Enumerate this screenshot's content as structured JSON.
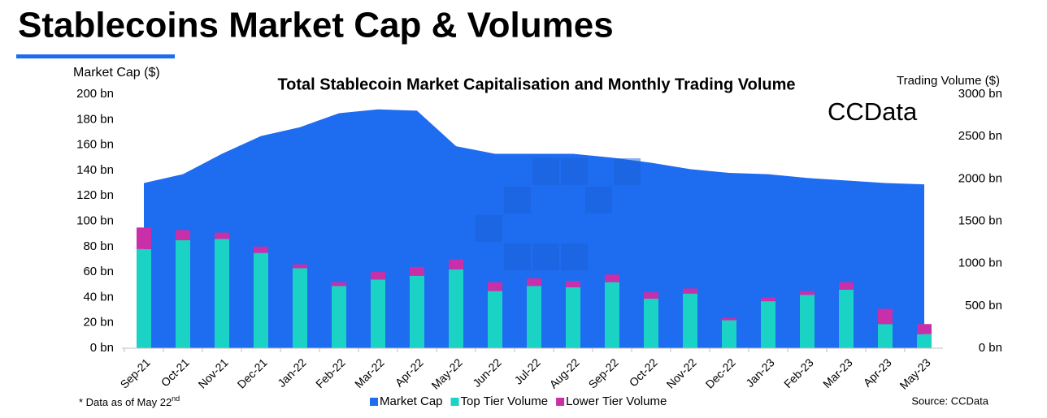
{
  "header": {
    "title": "Stablecoins Market Cap & Volumes"
  },
  "chart_data": {
    "type": "bar",
    "title": "Total Stablecoin Market Capitalisation and Monthly Trading Volume",
    "logo": "CCData",
    "y_label": "Market Cap ($)",
    "y2_label": "Trading Volume ($)",
    "categories": [
      "Sep-21",
      "Oct-21",
      "Nov-21",
      "Dec-21",
      "Jan-22",
      "Feb-22",
      "Mar-22",
      "Apr-22",
      "May-22",
      "Jun-22",
      "Jul-22",
      "Aug-22",
      "Sep-22",
      "Oct-22",
      "Nov-22",
      "Dec-22",
      "Jan-23",
      "Feb-23",
      "Mar-23",
      "Apr-23",
      "May-23"
    ],
    "series": [
      {
        "name": "Market Cap",
        "color": "#1e6cf0",
        "kind": "area",
        "axis": "y",
        "values": [
          130,
          137,
          153,
          167,
          174,
          185,
          188,
          187,
          159,
          153,
          153,
          153,
          150,
          146,
          141,
          138,
          137,
          134,
          132,
          130,
          129
        ]
      },
      {
        "name": "Top Tier Volume",
        "color": "#1ad3c4",
        "kind": "bar",
        "axis": "y2",
        "values": [
          1170,
          1275,
          1290,
          1125,
          945,
          735,
          810,
          855,
          930,
          675,
          735,
          720,
          780,
          585,
          645,
          330,
          555,
          630,
          690,
          285,
          165
        ]
      },
      {
        "name": "Lower Tier Volume",
        "color": "#c92fa9",
        "kind": "bar",
        "axis": "y2",
        "values": [
          255,
          120,
          75,
          75,
          45,
          45,
          90,
          105,
          120,
          105,
          90,
          75,
          90,
          75,
          60,
          30,
          45,
          45,
          90,
          180,
          120
        ]
      }
    ],
    "ylim": [
      0,
      200
    ],
    "yticks": [
      {
        "value": 0,
        "label": "0 bn"
      },
      {
        "value": 20,
        "label": "20 bn"
      },
      {
        "value": 40,
        "label": "40 bn"
      },
      {
        "value": 60,
        "label": "60 bn"
      },
      {
        "value": 80,
        "label": "80 bn"
      },
      {
        "value": 100,
        "label": "100 bn"
      },
      {
        "value": 120,
        "label": "120 bn"
      },
      {
        "value": 140,
        "label": "140 bn"
      },
      {
        "value": 160,
        "label": "160 bn"
      },
      {
        "value": 180,
        "label": "180 bn"
      },
      {
        "value": 200,
        "label": "200 bn"
      }
    ],
    "y2lim": [
      0,
      3000
    ],
    "y2ticks": [
      {
        "value": 0,
        "label": "0 bn"
      },
      {
        "value": 500,
        "label": "500 bn"
      },
      {
        "value": 1000,
        "label": "1000 bn"
      },
      {
        "value": 1500,
        "label": "1500 bn"
      },
      {
        "value": 2000,
        "label": "2000 bn"
      },
      {
        "value": 2500,
        "label": "2500 bn"
      },
      {
        "value": 3000,
        "label": "3000 bn"
      }
    ],
    "footnote": {
      "text": "* Data as of May 22",
      "superscript": "nd"
    },
    "source": "Source: CCData"
  }
}
